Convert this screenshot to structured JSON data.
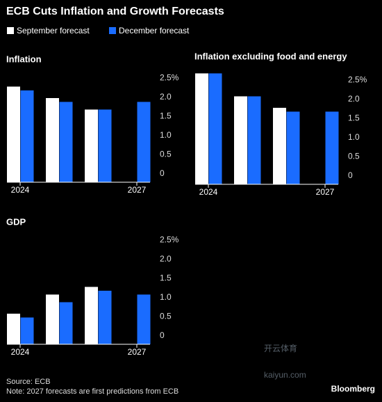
{
  "title": "ECB Cuts Inflation and Growth Forecasts",
  "chart_data": [
    {
      "type": "bar",
      "title": "Inflation",
      "categories": [
        "2024",
        null,
        null,
        "2027"
      ],
      "series": [
        {
          "name": "September forecast",
          "color": "#ffffff",
          "values": [
            2.5,
            2.2,
            1.9,
            null
          ]
        },
        {
          "name": "December forecast",
          "color": "#1a6cff",
          "values": [
            2.4,
            2.1,
            1.9,
            2.1
          ]
        }
      ],
      "ylim": [
        0,
        2.6
      ],
      "yticks": [
        0,
        0.5,
        {
          "value": 1,
          "label": "1.0"
        },
        1.5,
        {
          "value": 2,
          "label": "2.0"
        },
        {
          "value": 2.5,
          "label": "2.5%"
        }
      ]
    },
    {
      "type": "bar",
      "title": "Inflation excluding food and energy",
      "categories": [
        "2024",
        null,
        null,
        "2027"
      ],
      "series": [
        {
          "name": "September forecast",
          "color": "#ffffff",
          "values": [
            2.9,
            2.3,
            2.0,
            null
          ]
        },
        {
          "name": "December forecast",
          "color": "#1a6cff",
          "values": [
            2.9,
            2.3,
            1.9,
            1.9
          ]
        }
      ],
      "ylim": [
        0,
        2.9
      ],
      "yticks": [
        0,
        0.5,
        {
          "value": 1,
          "label": "1.0"
        },
        1.5,
        {
          "value": 2,
          "label": "2.0"
        },
        {
          "value": 2.5,
          "label": "2.5%"
        }
      ]
    },
    {
      "type": "bar",
      "title": "GDP",
      "categories": [
        "2024",
        null,
        null,
        "2027"
      ],
      "series": [
        {
          "name": "September forecast",
          "color": "#ffffff",
          "values": [
            0.8,
            1.3,
            1.5,
            null
          ]
        },
        {
          "name": "December forecast",
          "color": "#1a6cff",
          "values": [
            0.7,
            1.1,
            1.4,
            1.3
          ]
        }
      ],
      "ylim": [
        0,
        2.6
      ],
      "yticks": [
        0,
        0.5,
        {
          "value": 1,
          "label": "1.0"
        },
        1.5,
        {
          "value": 2,
          "label": "2.0"
        },
        {
          "value": 2.5,
          "label": "2.5%"
        }
      ]
    }
  ],
  "source": "Source: ECB",
  "note": "Note: 2027 forecasts are first predictions from ECB",
  "brand": "Bloomberg",
  "watermark": [
    "开云体育",
    "kaiyun.com"
  ]
}
